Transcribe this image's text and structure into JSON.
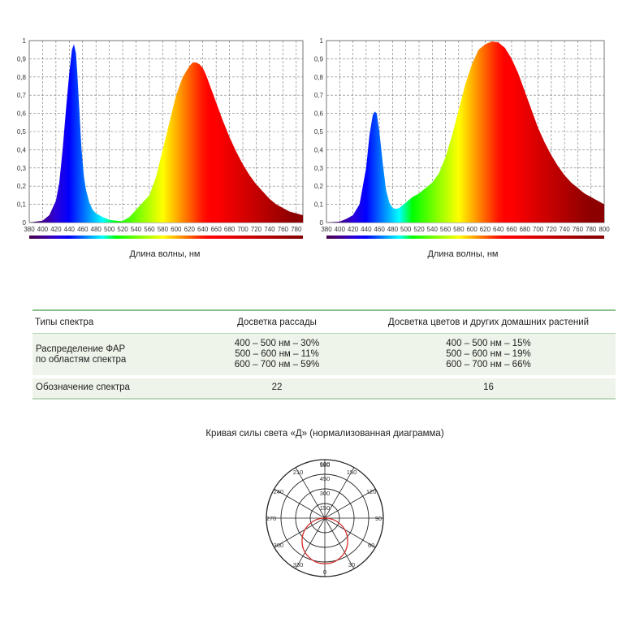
{
  "charts": [
    {
      "id": "left",
      "type": "area",
      "xlabel": "Длина волны, нм",
      "xlim": [
        380,
        790
      ],
      "ylim": [
        0,
        1
      ],
      "x_ticks": [
        380,
        400,
        420,
        440,
        460,
        480,
        500,
        520,
        540,
        560,
        580,
        600,
        620,
        640,
        660,
        680,
        700,
        720,
        740,
        760,
        780
      ],
      "y_ticks": [
        "0",
        "0,1",
        "0,2",
        "0,3",
        "0,4",
        "0,5",
        "0,6",
        "0,7",
        "0,8",
        "0,9",
        "1"
      ],
      "grid": true,
      "series": [
        {
          "x": [
            380,
            400,
            410,
            420,
            425,
            430,
            435,
            440,
            444,
            447,
            450,
            452,
            455,
            458,
            460,
            462,
            465,
            470,
            475,
            480,
            485,
            490,
            500,
            510,
            520,
            530,
            540,
            550,
            560,
            570,
            580,
            590,
            600,
            610,
            620,
            625,
            630,
            635,
            640,
            645,
            650,
            660,
            670,
            680,
            690,
            700,
            710,
            720,
            730,
            740,
            750,
            760,
            770,
            780,
            790
          ],
          "y": [
            0,
            0.01,
            0.04,
            0.12,
            0.22,
            0.4,
            0.62,
            0.82,
            0.95,
            0.98,
            0.93,
            0.82,
            0.62,
            0.42,
            0.33,
            0.25,
            0.18,
            0.11,
            0.07,
            0.05,
            0.04,
            0.03,
            0.015,
            0.01,
            0.008,
            0.03,
            0.07,
            0.11,
            0.15,
            0.25,
            0.4,
            0.55,
            0.7,
            0.8,
            0.86,
            0.88,
            0.88,
            0.87,
            0.85,
            0.81,
            0.76,
            0.66,
            0.56,
            0.47,
            0.39,
            0.32,
            0.26,
            0.21,
            0.17,
            0.13,
            0.1,
            0.08,
            0.06,
            0.05,
            0.04
          ]
        }
      ]
    },
    {
      "id": "right",
      "type": "area",
      "xlabel": "Длина волны, нм",
      "xlim": [
        380,
        800
      ],
      "ylim": [
        0,
        1
      ],
      "x_ticks": [
        380,
        400,
        420,
        440,
        460,
        480,
        500,
        520,
        540,
        560,
        580,
        600,
        620,
        640,
        660,
        680,
        700,
        720,
        740,
        760,
        780,
        800
      ],
      "y_ticks": [
        "0",
        "0,1",
        "0,2",
        "0,3",
        "0,4",
        "0,5",
        "0,6",
        "0,7",
        "0,8",
        "0,9",
        "1"
      ],
      "grid": true,
      "series": [
        {
          "x": [
            380,
            400,
            410,
            420,
            430,
            440,
            445,
            450,
            453,
            456,
            460,
            465,
            470,
            475,
            480,
            485,
            490,
            500,
            510,
            520,
            530,
            540,
            550,
            560,
            570,
            580,
            590,
            600,
            610,
            620,
            630,
            640,
            650,
            660,
            670,
            680,
            690,
            700,
            710,
            720,
            730,
            740,
            750,
            760,
            770,
            780,
            790,
            800
          ],
          "y": [
            0,
            0.005,
            0.02,
            0.04,
            0.1,
            0.3,
            0.48,
            0.59,
            0.61,
            0.6,
            0.5,
            0.33,
            0.18,
            0.11,
            0.08,
            0.075,
            0.08,
            0.11,
            0.14,
            0.16,
            0.19,
            0.22,
            0.27,
            0.36,
            0.48,
            0.62,
            0.76,
            0.87,
            0.95,
            0.98,
            0.995,
            0.99,
            0.96,
            0.9,
            0.82,
            0.72,
            0.62,
            0.52,
            0.44,
            0.37,
            0.31,
            0.26,
            0.22,
            0.19,
            0.16,
            0.14,
            0.12,
            0.1
          ]
        }
      ]
    }
  ],
  "table": {
    "header": [
      "Типы спектра",
      "Досветка рассады",
      "Досветка цветов и других домашних растений"
    ],
    "far_label": [
      "Распределение ФАР",
      "по областям спектра"
    ],
    "far_col1": [
      "400 – 500 нм – 30%",
      "500 – 600 нм – 11%",
      "600 – 700 нм – 59%"
    ],
    "far_col2": [
      "400 – 500 нм – 15%",
      "500 – 600 нм – 19%",
      "600 – 700 нм – 66%"
    ],
    "code_label": "Обозначение спектра",
    "code_col1": "22",
    "code_col2": "16"
  },
  "polar": {
    "title": "Кривая силы света «Д» (нормализованная диаграмма)",
    "radial_labels": [
      "150",
      "300",
      "450",
      "600"
    ],
    "angle_labels": [
      "180",
      "150",
      "120",
      "90",
      "60",
      "30",
      "0",
      "330",
      "300",
      "270",
      "240",
      "210"
    ],
    "curve_color": "#d42a2a",
    "curve": {
      "type": "polar",
      "max_intensity": 600,
      "approx_shape": "circle",
      "diameter_fraction": 0.78
    }
  }
}
